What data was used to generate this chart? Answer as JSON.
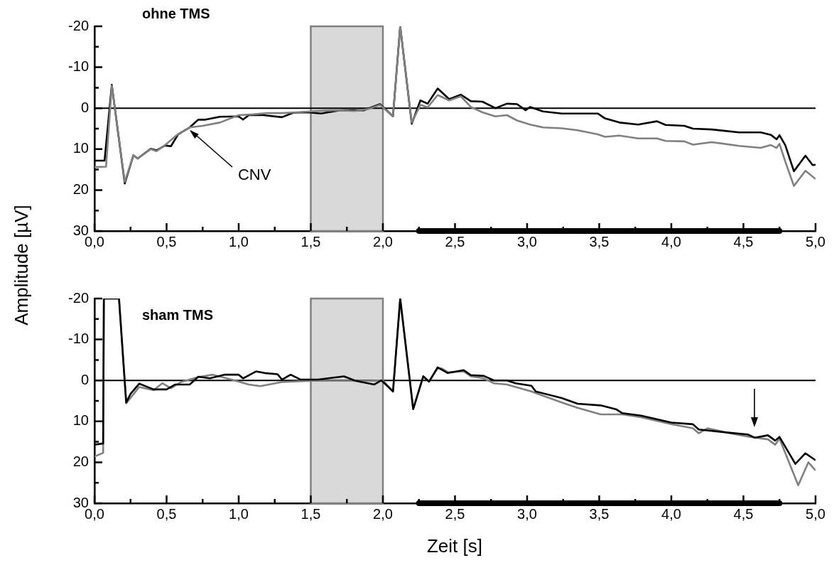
{
  "chart_data": [
    {
      "type": "line",
      "title": "ohne TMS",
      "ylabel": "Amplitude [µV]",
      "xlim": [
        0,
        5
      ],
      "ylim": [
        30,
        -20
      ],
      "xticks": [
        {
          "value": 0,
          "label": "0,0"
        },
        {
          "value": 0.25,
          "label": null
        },
        {
          "value": 0.5,
          "label": "0,5"
        },
        {
          "value": 0.75,
          "label": null
        },
        {
          "value": 1,
          "label": "1,0"
        },
        {
          "value": 1.25,
          "label": null
        },
        {
          "value": 1.5,
          "label": "1,5"
        },
        {
          "value": 1.75,
          "label": null
        },
        {
          "value": 2,
          "label": "2,0"
        },
        {
          "value": 2.25,
          "label": null
        },
        {
          "value": 2.5,
          "label": "2,5"
        },
        {
          "value": 2.75,
          "label": null
        },
        {
          "value": 3,
          "label": "3,0"
        },
        {
          "value": 3.25,
          "label": null
        },
        {
          "value": 3.5,
          "label": "3,5"
        },
        {
          "value": 3.75,
          "label": null
        },
        {
          "value": 4,
          "label": "4,0"
        },
        {
          "value": 4.25,
          "label": null
        },
        {
          "value": 4.5,
          "label": "4,5"
        },
        {
          "value": 4.75,
          "label": null
        },
        {
          "value": 5,
          "label": "5,0"
        }
      ],
      "yticks": [
        30,
        {
          "value": 25,
          "label": null
        },
        20,
        {
          "value": 15,
          "label": null
        },
        10,
        {
          "value": 5,
          "label": null
        },
        0,
        {
          "value": -5,
          "label": null
        },
        -10,
        {
          "value": -15,
          "label": null
        },
        -20
      ],
      "series": [
        {
          "color": "#808080",
          "x": [
            0,
            0.08,
            0.12,
            0.21,
            0.27,
            0.3,
            0.39,
            0.43,
            0.49,
            0.57,
            0.66,
            0.75,
            0.87,
            1.0,
            1.1,
            1.2,
            1.3,
            1.4,
            1.5,
            1.6,
            1.7,
            1.8,
            1.9,
            1.98,
            2.07,
            2.12,
            2.2,
            2.26,
            2.31,
            2.38,
            2.46,
            2.54,
            2.61,
            2.69,
            2.78,
            2.86,
            2.93,
            3.02,
            3.11,
            3.24,
            3.35,
            3.49,
            3.54,
            3.64,
            3.77,
            3.9,
            3.96,
            4.09,
            4.15,
            4.28,
            4.47,
            4.62,
            4.69,
            4.73,
            4.75,
            4.79,
            4.85,
            4.93,
            5.0
          ],
          "values": [
            14.4,
            14.3,
            -5.5,
            18,
            11.5,
            12.3,
            10,
            10.5,
            9,
            6.6,
            4.7,
            4.3,
            3.5,
            1.7,
            1.5,
            1.2,
            1.2,
            1,
            0.8,
            0.6,
            0.5,
            0.7,
            0.2,
            -0.8,
            2,
            -20,
            3.5,
            -0.8,
            -0.2,
            -3.2,
            -1.9,
            -2.9,
            -0.3,
            1,
            2,
            1.7,
            3,
            4,
            4.7,
            4.9,
            5.4,
            6.4,
            7,
            6.7,
            7.4,
            7.4,
            8,
            8.1,
            8.9,
            8.3,
            9.2,
            9.7,
            9,
            9.7,
            8.7,
            13,
            19,
            15.3,
            17.3
          ]
        },
        {
          "color": "#000000",
          "x": [
            0,
            0.07,
            0.12,
            0.21,
            0.27,
            0.3,
            0.39,
            0.43,
            0.49,
            0.53,
            0.58,
            0.66,
            0.72,
            0.77,
            0.87,
            1.0,
            1.03,
            1.07,
            1.17,
            1.3,
            1.38,
            1.48,
            1.57,
            1.71,
            1.87,
            1.98,
            2.07,
            2.12,
            2.2,
            2.26,
            2.31,
            2.38,
            2.46,
            2.54,
            2.61,
            2.69,
            2.78,
            2.86,
            2.93,
            2.99,
            3.02,
            3.11,
            3.24,
            3.35,
            3.49,
            3.54,
            3.64,
            3.77,
            3.9,
            3.96,
            4.09,
            4.15,
            4.28,
            4.47,
            4.62,
            4.69,
            4.73,
            4.75,
            4.79,
            4.85,
            4.93,
            4.98,
            5.0
          ],
          "values": [
            12.8,
            12.8,
            -5.7,
            18.4,
            11.5,
            12.3,
            9.9,
            10.3,
            9.1,
            9.3,
            6.4,
            4.7,
            2.8,
            2.8,
            2.1,
            2,
            2.8,
            1.7,
            1.7,
            2.2,
            1.1,
            1,
            1.3,
            0.5,
            0.5,
            -1,
            2,
            -20,
            3.8,
            -1.9,
            -1.1,
            -4.8,
            -2.2,
            -3.3,
            -1.7,
            -1.6,
            0,
            -1.1,
            -1,
            0.5,
            -0.3,
            0.8,
            1.3,
            1.3,
            1.3,
            2.5,
            3.5,
            4,
            3.2,
            4.1,
            4.3,
            5,
            5.2,
            5.9,
            5.9,
            6.5,
            7.6,
            6.6,
            9,
            15.4,
            11.6,
            13.9,
            13.8
          ]
        },
        {
          "color": "#000000",
          "x": [
            2.25,
            4.75
          ],
          "values": [
            30,
            30
          ]
        }
      ],
      "ref_lines": [
        {
          "axis": "y",
          "value": 0,
          "color": "#000000"
        }
      ],
      "bands": [
        {
          "axis": "x",
          "from": 1.5,
          "to": 2,
          "color": "#808080"
        }
      ],
      "annotations": [
        {
          "text": "CNV",
          "x": 0.65,
          "y": 5
        }
      ]
    },
    {
      "type": "line",
      "title": "sham TMS",
      "xlabel": "Zeit [s]",
      "xlim": [
        0,
        5
      ],
      "ylim": [
        30,
        -20
      ],
      "xticks": [
        {
          "value": 0,
          "label": "0,0"
        },
        {
          "value": 0.25,
          "label": null
        },
        {
          "value": 0.5,
          "label": "0,5"
        },
        {
          "value": 0.75,
          "label": null
        },
        {
          "value": 1,
          "label": "1,0"
        },
        {
          "value": 1.25,
          "label": null
        },
        {
          "value": 1.5,
          "label": "1,5"
        },
        {
          "value": 1.75,
          "label": null
        },
        {
          "value": 2,
          "label": "2,0"
        },
        {
          "value": 2.25,
          "label": null
        },
        {
          "value": 2.5,
          "label": "2,5"
        },
        {
          "value": 2.75,
          "label": null
        },
        {
          "value": 3,
          "label": "3,0"
        },
        {
          "value": 3.25,
          "label": null
        },
        {
          "value": 3.5,
          "label": "3,5"
        },
        {
          "value": 3.75,
          "label": null
        },
        {
          "value": 4,
          "label": "4,0"
        },
        {
          "value": 4.25,
          "label": null
        },
        {
          "value": 4.5,
          "label": "4,5"
        },
        {
          "value": 4.75,
          "label": null
        },
        {
          "value": 5,
          "label": "5,0"
        }
      ],
      "yticks": [
        30,
        {
          "value": 25,
          "label": null
        },
        20,
        {
          "value": 15,
          "label": null
        },
        10,
        {
          "value": 5,
          "label": null
        },
        0,
        {
          "value": -5,
          "label": null
        },
        -10,
        {
          "value": -15,
          "label": null
        },
        -20
      ],
      "series": [
        {
          "color": "#000000",
          "x": [
            0,
            0.06,
            0.065,
            0.17,
            0.22,
            0.25,
            0.31,
            0.41,
            0.5,
            0.56,
            0.66,
            0.72,
            0.8,
            0.9,
            1.0,
            1.03,
            1.12,
            1.18,
            1.27,
            1.3,
            1.36,
            1.43,
            1.55,
            1.73,
            1.81,
            1.94,
            1.99,
            2.07,
            2.12,
            2.21,
            2.28,
            2.32,
            2.38,
            2.45,
            2.56,
            2.61,
            2.7,
            2.77,
            2.86,
            2.92,
            3.03,
            3.06,
            3.24,
            3.35,
            3.51,
            3.62,
            3.66,
            3.79,
            4.0,
            4.15,
            4.19,
            4.38,
            4.53,
            4.58,
            4.67,
            4.72,
            4.75,
            4.86,
            4.93,
            5.0
          ],
          "values": [
            15.7,
            15.4,
            -20,
            -20,
            5.4,
            3.3,
            0.8,
            2.2,
            2.2,
            1,
            1,
            -0.9,
            -0.5,
            -1.4,
            -1.4,
            -0.5,
            -2.2,
            -1.8,
            -1.5,
            -0.2,
            -1.4,
            -0.2,
            -0.2,
            -1,
            0.1,
            1,
            0,
            2.7,
            -20,
            7,
            -1,
            0.3,
            -3.2,
            -1.8,
            -2.5,
            -1.3,
            -1.1,
            0,
            0,
            0.7,
            1.3,
            2.7,
            4.3,
            5.7,
            6.1,
            7.1,
            8,
            8.6,
            10.3,
            10.7,
            12,
            12.7,
            13.2,
            14,
            13.4,
            14.7,
            13.8,
            20.4,
            17.8,
            19.5
          ]
        },
        {
          "color": "#808080",
          "x": [
            0,
            0.06,
            0.065,
            0.17,
            0.22,
            0.31,
            0.41,
            0.47,
            0.53,
            0.6,
            0.72,
            0.82,
            0.95,
            1.07,
            1.15,
            1.3,
            1.5,
            1.7,
            1.9,
            2.0,
            2.07,
            2.12,
            2.21,
            2.28,
            2.32,
            2.38,
            2.41,
            2.45,
            2.56,
            2.61,
            2.7,
            2.77,
            2.86,
            3.03,
            3.24,
            3.35,
            3.51,
            3.66,
            3.79,
            4.0,
            4.15,
            4.19,
            4.25,
            4.38,
            4.53,
            4.67,
            4.72,
            4.75,
            4.88,
            4.95,
            5.0
          ],
          "values": [
            18.6,
            17.7,
            -20,
            -20,
            5.6,
            1.6,
            2.4,
            0.7,
            1.9,
            0.4,
            -0.8,
            -1.4,
            -0.2,
            1,
            1.4,
            0.4,
            0.1,
            0.1,
            0.1,
            0,
            2.7,
            -20,
            7,
            -1,
            0.3,
            -3,
            -2.9,
            -2,
            -2.2,
            -1,
            -0.5,
            0.7,
            1,
            2.7,
            5.4,
            6.7,
            8.3,
            8.3,
            9,
            10.7,
            11.7,
            12.9,
            11.7,
            12.7,
            13.7,
            14.4,
            15.7,
            14.2,
            25.6,
            20,
            22
          ]
        },
        {
          "color": "#000000",
          "x": [
            2.25,
            4.75
          ],
          "values": [
            30,
            30
          ]
        }
      ],
      "ref_lines": [
        {
          "axis": "y",
          "value": 0,
          "color": "#000000"
        }
      ],
      "bands": [
        {
          "axis": "x",
          "from": 1.5,
          "to": 2,
          "color": "#808080"
        }
      ]
    }
  ]
}
